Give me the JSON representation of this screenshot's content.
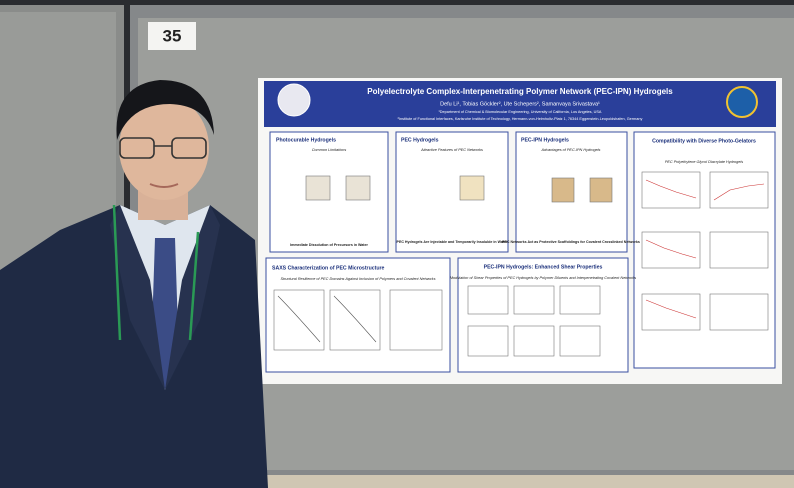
{
  "sign_number": "35",
  "poster": {
    "title": "Polyelectrolyte Complex-Interpenetrating Polymer Network (PEC-IPN) Hydrogels",
    "authors": "Defu Li¹, Tobias Göckler², Ute Schepers², Samanvaya Srivastava¹",
    "affiliations": [
      "¹Department of Chemical & Biomolecular Engineering, University of California, Los Angeles, USA",
      "²Institute of Functional Interfaces, Karlsruhe Institute of Technology, Hermann-von-Helmholtz-Platz 1, 76344 Eggenstein-Leopoldshafen, Germany"
    ],
    "sections": [
      {
        "heading": "Photocurable Hydrogels",
        "subheading": "Common Limitations",
        "caption": "Immediate Dissolution of Precursors in Water"
      },
      {
        "heading": "PEC Hydrogels",
        "subheading": "Attractive Features of PEC Networks",
        "caption": "PEC Hydrogels Are Injectable and Temporarily Insoluble in Water"
      },
      {
        "heading": "PEC-IPN Hydrogels",
        "subheading": "Advantages of PEC-IPN Hydrogels",
        "caption": "PEC Networks Act as Protective Scaffoldings for Covalent Crosslinked Networks"
      },
      {
        "heading": "Compatibility with Diverse Photo-Gelators",
        "subheading": "PEC Polyethylene Glycol Diacrylate Hydrogels"
      },
      {
        "heading": "SAXS Characterization of PEC Microstructure",
        "subheading": "Structural Resilience of PEC Domains Against Inclusion of Polymers and Covalent Networks"
      },
      {
        "heading": "PEC-IPN Hydrogels: Enhanced Shear Properties",
        "subheading": "Modulation of Shear Properties of PEC Hydrogels by Polymer Diluents and Interpenetrating Covalent Networks"
      }
    ]
  }
}
